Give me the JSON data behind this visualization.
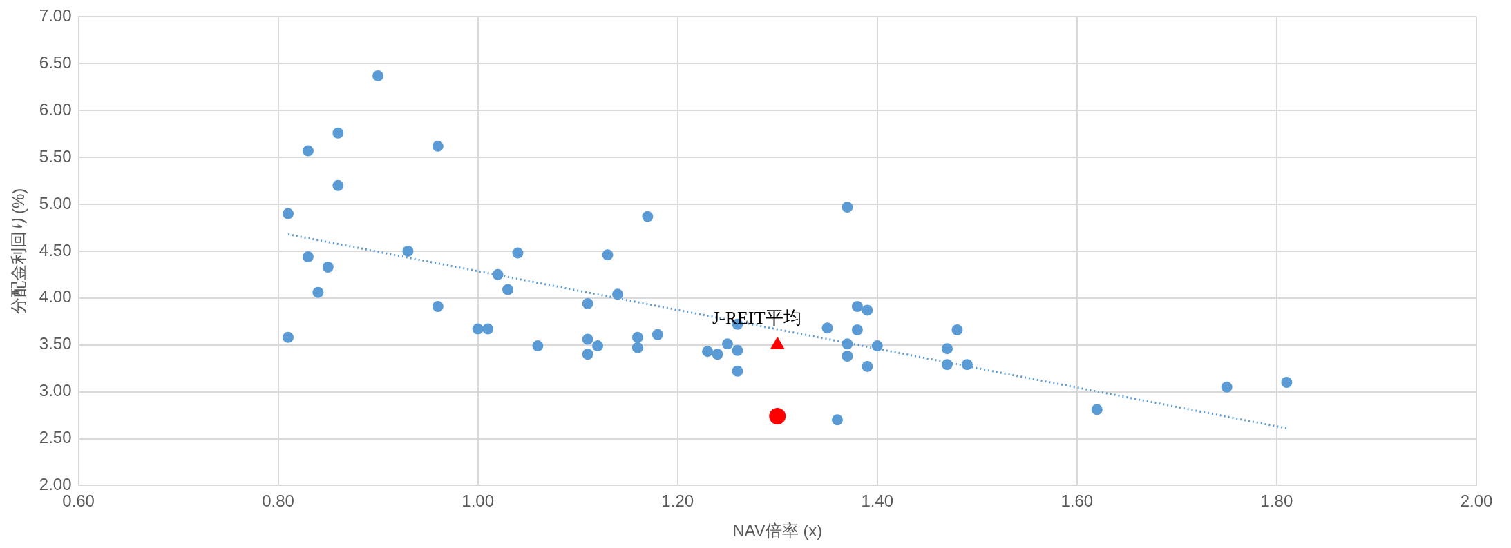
{
  "chart_data": {
    "type": "scatter",
    "xlabel": "NAV倍率 (x)",
    "ylabel": "分配金利回り(%)",
    "xlim": [
      0.6,
      2.0
    ],
    "xticks": [
      {
        "value": 0.6,
        "label": "0.60"
      },
      {
        "value": 0.8,
        "label": "0.80"
      },
      {
        "value": 1.0,
        "label": "1.00"
      },
      {
        "value": 1.2,
        "label": "1.20"
      },
      {
        "value": 1.4,
        "label": "1.40"
      },
      {
        "value": 1.6,
        "label": "1.60"
      },
      {
        "value": 1.8,
        "label": "1.80"
      },
      {
        "value": 2.0,
        "label": "2.00"
      }
    ],
    "ylim": [
      2.0,
      7.0
    ],
    "yticks": [
      {
        "value": 2.0,
        "label": "2.00"
      },
      {
        "value": 2.5,
        "label": "2.50"
      },
      {
        "value": 3.0,
        "label": "3.00"
      },
      {
        "value": 3.5,
        "label": "3.50"
      },
      {
        "value": 4.0,
        "label": "4.00"
      },
      {
        "value": 4.5,
        "label": "4.50"
      },
      {
        "value": 5.0,
        "label": "5.00"
      },
      {
        "value": 5.5,
        "label": "5.50"
      },
      {
        "value": 6.0,
        "label": "6.00"
      },
      {
        "value": 6.5,
        "label": "6.50"
      },
      {
        "value": 7.0,
        "label": "7.00"
      }
    ],
    "grid": true,
    "legend": false,
    "annotations": [
      {
        "text": "J-REIT平均",
        "x": 1.3,
        "y": 3.5
      }
    ],
    "series": [
      {
        "type": "scatter",
        "marker": "circle",
        "color": "#5b9bd5",
        "x": [
          0.81,
          0.81,
          0.83,
          0.83,
          0.84,
          0.85,
          0.86,
          0.86,
          0.9,
          0.93,
          0.96,
          0.96,
          1.0,
          1.01,
          1.02,
          1.03,
          1.04,
          1.06,
          1.11,
          1.11,
          1.11,
          1.12,
          1.13,
          1.14,
          1.16,
          1.16,
          1.17,
          1.18,
          1.23,
          1.24,
          1.25,
          1.26,
          1.26,
          1.26,
          1.35,
          1.36,
          1.37,
          1.37,
          1.37,
          1.38,
          1.38,
          1.39,
          1.39,
          1.4,
          1.47,
          1.47,
          1.48,
          1.49,
          1.62,
          1.75,
          1.81
        ],
        "values": [
          4.9,
          3.58,
          5.57,
          4.44,
          4.06,
          4.33,
          5.76,
          5.2,
          6.37,
          4.5,
          5.62,
          3.91,
          3.67,
          3.67,
          4.25,
          4.09,
          4.48,
          3.49,
          3.94,
          3.56,
          3.4,
          3.49,
          4.46,
          4.04,
          3.58,
          3.47,
          4.87,
          3.61,
          3.43,
          3.4,
          3.51,
          3.72,
          3.44,
          3.22,
          3.68,
          2.7,
          4.97,
          3.51,
          3.38,
          3.91,
          3.66,
          3.87,
          3.27,
          3.49,
          3.46,
          3.29,
          3.66,
          3.29,
          2.81,
          3.05,
          3.1
        ]
      },
      {
        "type": "scatter",
        "marker": "triangle",
        "color": "#ff0000",
        "x": [
          1.3
        ],
        "values": [
          3.5
        ]
      },
      {
        "type": "scatter",
        "marker": "circle",
        "color": "#ff0000",
        "x": [
          1.3
        ],
        "values": [
          2.74
        ]
      },
      {
        "type": "line",
        "marker": "none",
        "line_style": "dotted",
        "color": "#5b9bd5",
        "x": [
          0.81,
          1.81
        ],
        "values": [
          4.68,
          2.61
        ]
      }
    ]
  }
}
